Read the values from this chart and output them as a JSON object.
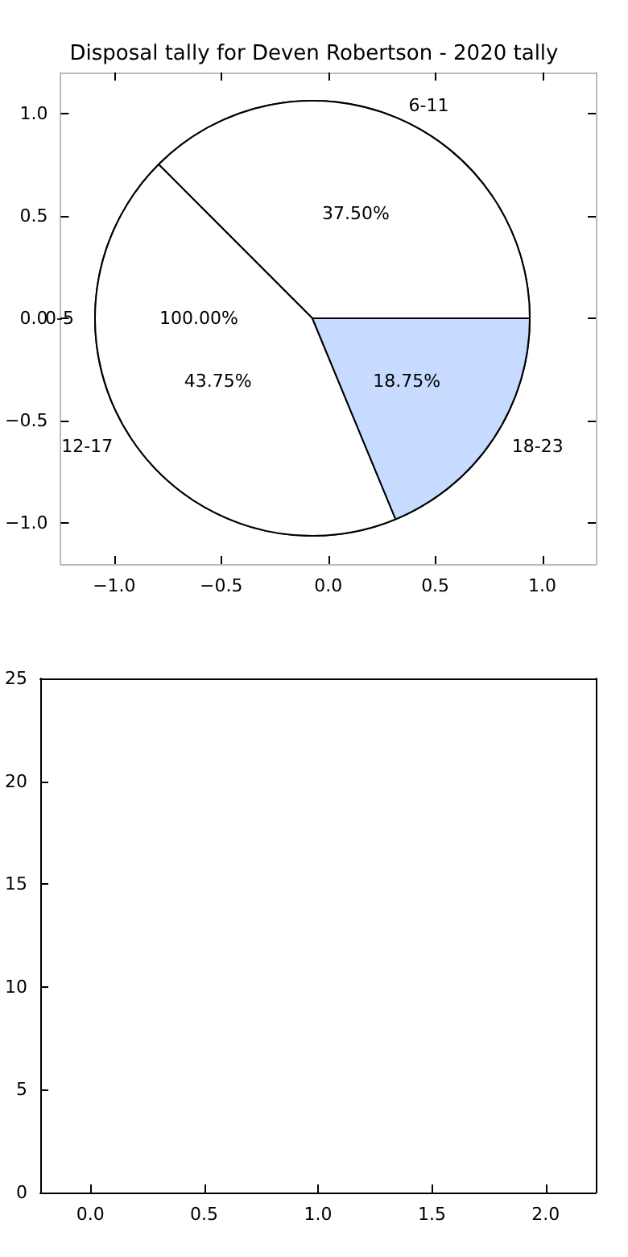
{
  "chart_data": [
    {
      "type": "scatter",
      "title": "Disposal tally for Deven Robertson - 2020 tally",
      "xlim": [
        -1.25,
        1.25
      ],
      "ylim": [
        -1.2,
        1.2
      ],
      "xticks": [
        {
          "value": -1,
          "label": "−1.0"
        },
        {
          "value": -0.5,
          "label": "−0.5"
        },
        {
          "value": 0,
          "label": "0.0"
        },
        {
          "value": 0.5,
          "label": "0.5"
        },
        {
          "value": 1,
          "label": "1.0"
        }
      ],
      "yticks": [
        {
          "value": -1,
          "label": "−1.0"
        },
        {
          "value": -0.5,
          "label": "−0.5"
        },
        {
          "value": 0,
          "label": "0.0"
        },
        {
          "value": 0.5,
          "label": "0.5"
        },
        {
          "value": 1,
          "label": "1.0"
        }
      ]
    },
    {
      "type": "pie",
      "categories": [
        "0-5"
      ],
      "values": [
        100
      ],
      "colors": [
        "#ffffff"
      ],
      "value_labels": [
        "100.00%"
      ]
    },
    {
      "type": "pie",
      "categories": [
        "6-11",
        "12-17",
        "18-23"
      ],
      "values": [
        37.5,
        43.75,
        18.75
      ],
      "colors": [
        "#ffffff",
        "#ffffff",
        "#c6dbff"
      ],
      "value_labels": [
        "37.50%",
        "43.75%",
        "18.75%"
      ]
    },
    {
      "type": "bar",
      "xlim": [
        -0.22,
        2.22
      ],
      "xticks": [
        {
          "value": 0,
          "label": "0.0"
        },
        {
          "value": 0.5,
          "label": "0.5"
        },
        {
          "value": 1,
          "label": "1.0"
        },
        {
          "value": 1.5,
          "label": "1.5"
        },
        {
          "value": 2,
          "label": "2.0"
        }
      ],
      "ylim": [
        0,
        25
      ],
      "yticks": [
        0,
        5,
        10,
        15,
        20,
        25
      ]
    }
  ]
}
